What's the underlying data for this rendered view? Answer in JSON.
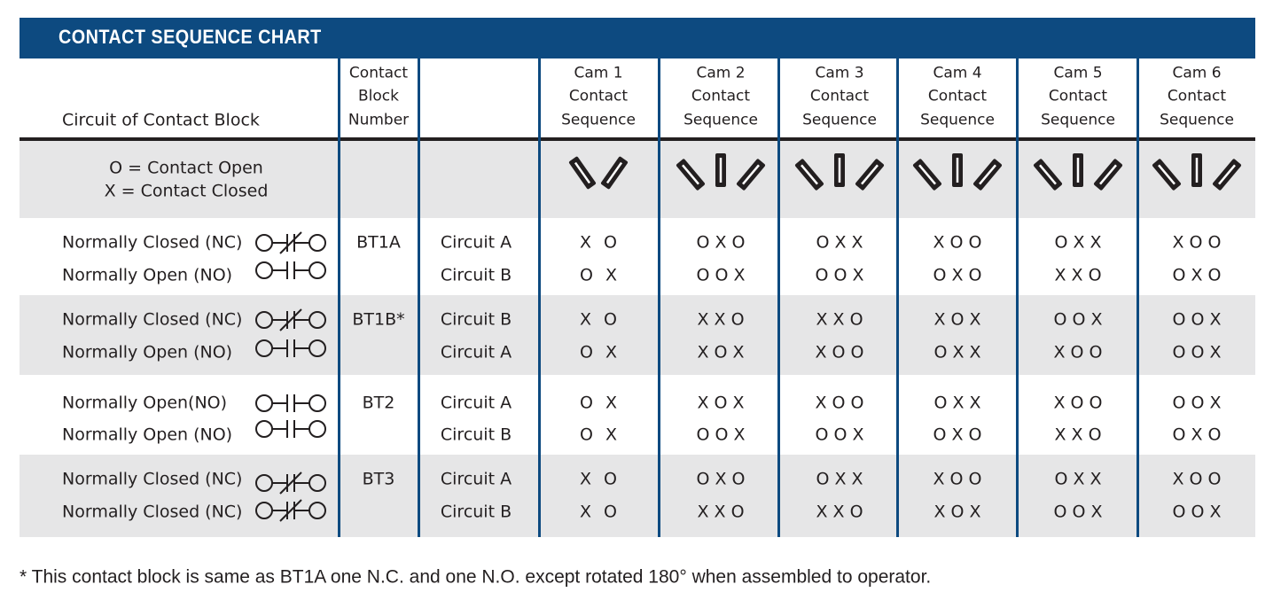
{
  "title": "CONTACT SEQUENCE CHART",
  "header": {
    "circuit": [
      "Circuit of Contact Block"
    ],
    "block": [
      "Contact",
      "Block",
      "Number"
    ],
    "cams": [
      [
        "Cam 1",
        "Contact",
        "Sequence"
      ],
      [
        "Cam 2",
        "Contact",
        "Sequence"
      ],
      [
        "Cam 3",
        "Contact",
        "Sequence"
      ],
      [
        "Cam 4",
        "Contact",
        "Sequence"
      ],
      [
        "Cam 5",
        "Contact",
        "Sequence"
      ],
      [
        "Cam 6",
        "Contact",
        "Sequence"
      ]
    ]
  },
  "legend": [
    "O = Contact Open",
    "X = Contact Closed"
  ],
  "groups": [
    {
      "block": "BT1A",
      "rows": [
        {
          "name": "Normally Closed (NC)",
          "circuit": "Circuit A",
          "cams": [
            "X O",
            "O X O",
            "O X X",
            "X O O",
            "O X X",
            "X O O"
          ]
        },
        {
          "name": "Normally Open (NO)",
          "circuit": "Circuit B",
          "cams": [
            "O X",
            "O O X",
            "O O X",
            "O X O",
            "X X O",
            "O X O"
          ]
        }
      ]
    },
    {
      "block": "BT1B*",
      "rows": [
        {
          "name": "Normally Closed (NC)",
          "circuit": "Circuit B",
          "cams": [
            "X O",
            "X X O",
            "X X O",
            "X O X",
            "O O X",
            "O O X"
          ]
        },
        {
          "name": "Normally Open (NO)",
          "circuit": "Circuit A",
          "cams": [
            "O X",
            "X O X",
            "X O O",
            "O X X",
            "X O O",
            "O O X"
          ]
        }
      ]
    },
    {
      "block": "BT2",
      "rows": [
        {
          "name": "Normally Open(NO)",
          "circuit": "Circuit A",
          "cams": [
            "O X",
            "X O X",
            "X O O",
            "O X X",
            "X O O",
            "O O X"
          ]
        },
        {
          "name": "Normally Open (NO)",
          "circuit": "Circuit B",
          "cams": [
            "O X",
            "O O X",
            "O O X",
            "O X O",
            "X X O",
            "O X O"
          ]
        }
      ]
    },
    {
      "block": "BT3",
      "rows": [
        {
          "name": "Normally Closed (NC)",
          "circuit": "Circuit A",
          "cams": [
            "X O",
            "O X O",
            "O X X",
            "X O O",
            "O X X",
            "X O O"
          ]
        },
        {
          "name": "Normally Closed (NC)",
          "circuit": "Circuit B",
          "cams": [
            "X O",
            "X X O",
            "X X O",
            "X O X",
            "O O X",
            "O O X"
          ]
        }
      ]
    }
  ],
  "footnote": "* This contact block is same as BT1A one N.C. and one N.O. except rotated 180° when assembled to operator."
}
